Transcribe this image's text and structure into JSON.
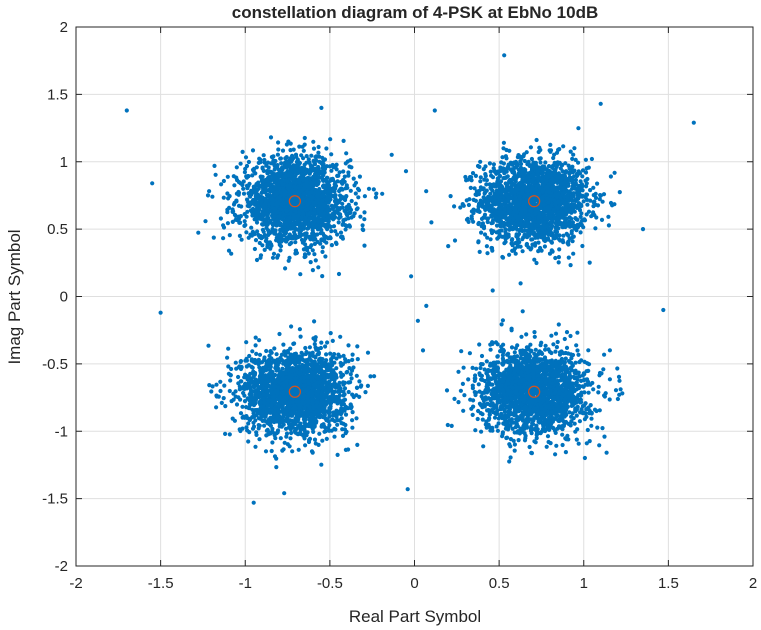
{
  "chart_data": {
    "type": "scatter",
    "title": "constellation diagram of 4-PSK at EbNo 10dB",
    "xlabel": "Real Part Symbol",
    "ylabel": "Imag Part Symbol",
    "xlim": [
      -2,
      2
    ],
    "ylim": [
      -2,
      2
    ],
    "xticks": [
      -2,
      -1.5,
      -1,
      -0.5,
      0,
      0.5,
      1,
      1.5,
      2
    ],
    "xtick_labels": [
      "-2",
      "-1.5",
      "-1",
      "-0.5",
      "0",
      "0.5",
      "1",
      "1.5",
      "2"
    ],
    "yticks": [
      -2,
      -1.5,
      -1,
      -0.5,
      0,
      0.5,
      1,
      1.5,
      2
    ],
    "ytick_labels": [
      "-2",
      "-1.5",
      "-1",
      "-0.5",
      "0",
      "0.5",
      "1",
      "1.5",
      "2"
    ],
    "grid": true,
    "series": [
      {
        "marker": "dot",
        "color": "#0072BD",
        "cluster_centers": [
          [
            0.707,
            0.707
          ],
          [
            -0.707,
            0.707
          ],
          [
            -0.707,
            -0.707
          ],
          [
            0.707,
            -0.707
          ]
        ],
        "points_per_cluster": 2000,
        "noise_std": 0.158,
        "outliers": [
          [
            -1.7,
            1.38
          ],
          [
            -1.55,
            0.84
          ],
          [
            -1.5,
            -0.12
          ],
          [
            0.53,
            1.79
          ],
          [
            1.1,
            1.43
          ],
          [
            1.65,
            1.29
          ],
          [
            1.47,
            -0.1
          ],
          [
            1.35,
            0.5
          ],
          [
            -0.55,
            1.4
          ],
          [
            0.12,
            1.38
          ],
          [
            -0.04,
            -1.43
          ],
          [
            -0.95,
            -1.53
          ],
          [
            -0.77,
            -1.46
          ],
          [
            -1.22,
            0.75
          ],
          [
            0.07,
            -0.07
          ],
          [
            0.02,
            -0.18
          ],
          [
            -0.05,
            0.93
          ],
          [
            0.1,
            0.55
          ],
          [
            -0.02,
            0.15
          ],
          [
            0.05,
            -0.4
          ]
        ]
      },
      {
        "marker": "open-circle",
        "color": "#D95319",
        "points": [
          [
            0.707,
            0.707
          ],
          [
            -0.707,
            0.707
          ],
          [
            -0.707,
            -0.707
          ],
          [
            0.707,
            -0.707
          ]
        ]
      }
    ]
  }
}
